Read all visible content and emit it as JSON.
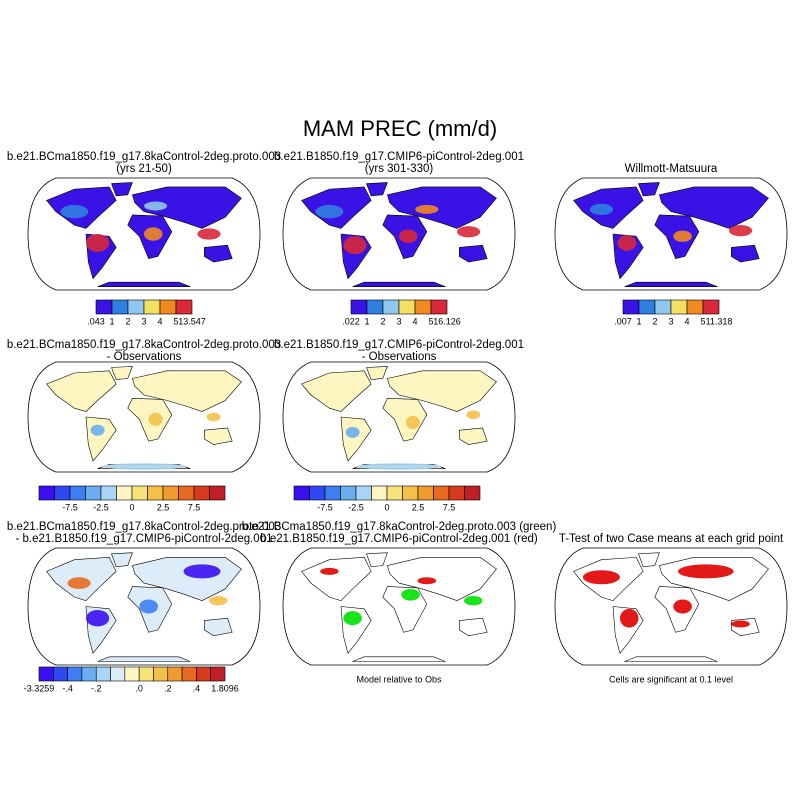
{
  "title": "MAM PREC (mm/d)",
  "panels": [
    {
      "title": [
        "b.e21.BCma1850.f19_g17.8kaControl-2deg.proto.003",
        "(yrs 21-50)"
      ],
      "colorbar": {
        "labels": [
          ".043",
          "1",
          "2",
          "3",
          "4",
          "5",
          "13.547"
        ],
        "end_labels": true,
        "colors": [
          "#3b12e6",
          "#2f7fe0",
          "#8ec8f0",
          "#f2e060",
          "#f08a20",
          "#d8283a"
        ]
      }
    },
    {
      "title": [
        "b.e21.B1850.f19_g17.CMIP6-piControl-2deg.001",
        "(yrs 301-330)"
      ],
      "colorbar": {
        "labels": [
          ".022",
          "1",
          "2",
          "3",
          "4",
          "5",
          "16.126"
        ],
        "end_labels": true,
        "colors": [
          "#3b12e6",
          "#2f7fe0",
          "#8ec8f0",
          "#f2e060",
          "#f08a20",
          "#d8283a"
        ]
      }
    },
    {
      "title": [
        "Willmott-Matsuura"
      ],
      "colorbar": {
        "labels": [
          ".007",
          "1",
          "2",
          "3",
          "4",
          "5",
          "11.318"
        ],
        "end_labels": true,
        "colors": [
          "#3b12e6",
          "#2f7fe0",
          "#8ec8f0",
          "#f2e060",
          "#f08a20",
          "#d8283a"
        ]
      }
    },
    {
      "title": [
        "b.e21.BCma1850.f19_g17.8kaControl-2deg.proto.003",
        "- Observations"
      ],
      "colorbar": {
        "labels": [
          "-7.5",
          "-2.5",
          "0",
          "2.5",
          "7.5"
        ],
        "end_labels": false,
        "colors": [
          "#3b0ff0",
          "#2e49f2",
          "#3d7ff0",
          "#6aaef0",
          "#a9d4f5",
          "#fdf6c0",
          "#f5e27a",
          "#f4c04a",
          "#f09a30",
          "#e86a20",
          "#d83a1e",
          "#c01e28"
        ]
      }
    },
    {
      "title": [
        "b.e21.B1850.f19_g17.CMIP6-piControl-2deg.001",
        "- Observations"
      ],
      "colorbar": {
        "labels": [
          "-7.5",
          "-2.5",
          "0",
          "2.5",
          "7.5"
        ],
        "end_labels": false,
        "colors": [
          "#3b0ff0",
          "#2e49f2",
          "#3d7ff0",
          "#6aaef0",
          "#a9d4f5",
          "#fdf6c0",
          "#f5e27a",
          "#f4c04a",
          "#f09a30",
          "#e86a20",
          "#d83a1e",
          "#c01e28"
        ]
      }
    },
    {
      "title": [
        "b.e21.BCma1850.f19_g17.8kaControl-2deg.proto.003",
        "- b.e21.B1850.f19_g17.CMIP6-piControl-2deg.001"
      ],
      "colorbar": {
        "labels": [
          "-3.3259",
          "-.4",
          "-.2",
          ".0",
          ".2",
          ".4",
          "1.8096"
        ],
        "end_labels": true,
        "colors": [
          "#3b0ff0",
          "#2e49f2",
          "#3d7ff0",
          "#6aaef0",
          "#a9d4f5",
          "#dcecf8",
          "#fdf6c0",
          "#f5e27a",
          "#f4c04a",
          "#f09a30",
          "#e86a20",
          "#d83a1e",
          "#c01e28"
        ]
      }
    },
    {
      "title": [
        "b.e21.BCma1850.f19_g17.8kaControl-2deg.proto.003 (green)",
        "b.e21.B1850.f19_g17.CMIP6-piControl-2deg.001 (red)"
      ],
      "caption": "Model relative to Obs"
    },
    {
      "title": [
        "T-Test of two Case means at each grid point"
      ],
      "caption": "Cells are significant at 0.1 level"
    }
  ]
}
